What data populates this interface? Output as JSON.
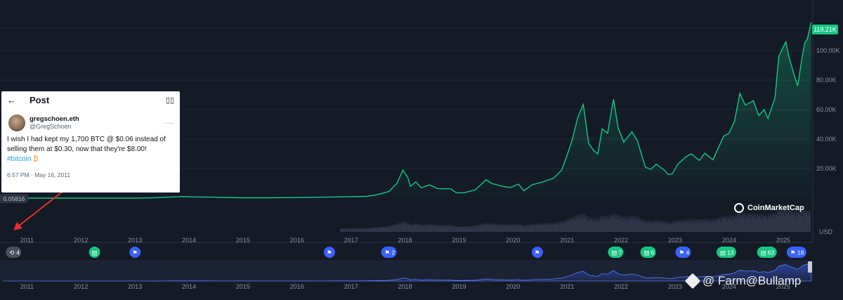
{
  "chart_data": {
    "type": "area",
    "currency_label": "USD",
    "current_price_label": "119.21K",
    "low_marker_label": "0.05816",
    "ylim": [
      0,
      120000
    ],
    "y_ticks": [
      {
        "value": 20000,
        "label": "20.00K"
      },
      {
        "value": 40000,
        "label": "40.00K"
      },
      {
        "value": 60000,
        "label": "60.00K"
      },
      {
        "value": 80000,
        "label": "80.00K"
      },
      {
        "value": 100000,
        "label": "100.00K"
      }
    ],
    "xlim": [
      2010.5,
      2025.55
    ],
    "x_ticks": [
      {
        "value": 2011,
        "label": "2011"
      },
      {
        "value": 2012,
        "label": "2012"
      },
      {
        "value": 2013,
        "label": "2013"
      },
      {
        "value": 2014,
        "label": "2014"
      },
      {
        "value": 2015,
        "label": "2015"
      },
      {
        "value": 2016,
        "label": "2016"
      },
      {
        "value": 2017,
        "label": "2017"
      },
      {
        "value": 2018,
        "label": "2018"
      },
      {
        "value": 2019,
        "label": "2019"
      },
      {
        "value": 2020,
        "label": "2020"
      },
      {
        "value": 2021,
        "label": "2021"
      },
      {
        "value": 2022,
        "label": "2022"
      },
      {
        "value": 2023,
        "label": "2023"
      },
      {
        "value": 2024,
        "label": "2024"
      },
      {
        "value": 2025,
        "label": "2025"
      }
    ],
    "series": [
      {
        "color": "#16c784",
        "points": [
          [
            2010.55,
            0.06
          ],
          [
            2011.0,
            0.3
          ],
          [
            2011.45,
            8
          ],
          [
            2012.0,
            5
          ],
          [
            2012.5,
            7
          ],
          [
            2013.0,
            13
          ],
          [
            2013.3,
            200
          ],
          [
            2013.9,
            1100
          ],
          [
            2014.1,
            800
          ],
          [
            2014.5,
            600
          ],
          [
            2015.0,
            250
          ],
          [
            2015.5,
            240
          ],
          [
            2016.0,
            430
          ],
          [
            2016.5,
            650
          ],
          [
            2017.0,
            1000
          ],
          [
            2017.3,
            1200
          ],
          [
            2017.5,
            2500
          ],
          [
            2017.7,
            4500
          ],
          [
            2017.85,
            10000
          ],
          [
            2017.96,
            19000
          ],
          [
            2018.05,
            14000
          ],
          [
            2018.1,
            8000
          ],
          [
            2018.2,
            11000
          ],
          [
            2018.3,
            7000
          ],
          [
            2018.45,
            9000
          ],
          [
            2018.6,
            6500
          ],
          [
            2018.85,
            6300
          ],
          [
            2018.95,
            3500
          ],
          [
            2019.1,
            3700
          ],
          [
            2019.3,
            5500
          ],
          [
            2019.5,
            12500
          ],
          [
            2019.6,
            10000
          ],
          [
            2019.8,
            8000
          ],
          [
            2019.95,
            7200
          ],
          [
            2020.1,
            9500
          ],
          [
            2020.2,
            5000
          ],
          [
            2020.35,
            9000
          ],
          [
            2020.55,
            11000
          ],
          [
            2020.75,
            13500
          ],
          [
            2020.9,
            19000
          ],
          [
            2021.0,
            29000
          ],
          [
            2021.1,
            40000
          ],
          [
            2021.2,
            55000
          ],
          [
            2021.3,
            63500
          ],
          [
            2021.4,
            37000
          ],
          [
            2021.5,
            32000
          ],
          [
            2021.57,
            30000
          ],
          [
            2021.65,
            47000
          ],
          [
            2021.75,
            44000
          ],
          [
            2021.86,
            67000
          ],
          [
            2021.95,
            47000
          ],
          [
            2022.05,
            38000
          ],
          [
            2022.2,
            45000
          ],
          [
            2022.3,
            39000
          ],
          [
            2022.45,
            21000
          ],
          [
            2022.55,
            19500
          ],
          [
            2022.65,
            23000
          ],
          [
            2022.8,
            19000
          ],
          [
            2022.87,
            16000
          ],
          [
            2022.95,
            16500
          ],
          [
            2023.05,
            23000
          ],
          [
            2023.2,
            28000
          ],
          [
            2023.3,
            30000
          ],
          [
            2023.45,
            25500
          ],
          [
            2023.55,
            30500
          ],
          [
            2023.7,
            26000
          ],
          [
            2023.8,
            34000
          ],
          [
            2023.9,
            42000
          ],
          [
            2024.0,
            44000
          ],
          [
            2024.1,
            52000
          ],
          [
            2024.2,
            71000
          ],
          [
            2024.3,
            63000
          ],
          [
            2024.45,
            66000
          ],
          [
            2024.55,
            56000
          ],
          [
            2024.65,
            60000
          ],
          [
            2024.72,
            54000
          ],
          [
            2024.85,
            68000
          ],
          [
            2024.92,
            96000
          ],
          [
            2024.97,
            100000
          ],
          [
            2025.05,
            106000
          ],
          [
            2025.1,
            97000
          ],
          [
            2025.2,
            84000
          ],
          [
            2025.27,
            76000
          ],
          [
            2025.35,
            95000
          ],
          [
            2025.4,
            105000
          ],
          [
            2025.45,
            108000
          ],
          [
            2025.52,
            119210
          ]
        ]
      }
    ],
    "events": [
      {
        "x": 2010.75,
        "kind": "history",
        "label": "4"
      },
      {
        "x": 2012.25,
        "kind": "doc",
        "label": ""
      },
      {
        "x": 2013.0,
        "kind": "flag",
        "label": ""
      },
      {
        "x": 2016.6,
        "kind": "flag",
        "label": ""
      },
      {
        "x": 2017.7,
        "kind": "flag",
        "label": "2"
      },
      {
        "x": 2020.45,
        "kind": "flag",
        "label": ""
      },
      {
        "x": 2021.9,
        "kind": "doc",
        "label": "7"
      },
      {
        "x": 2022.5,
        "kind": "doc",
        "label": "6"
      },
      {
        "x": 2023.15,
        "kind": "flag",
        "label": "4"
      },
      {
        "x": 2023.95,
        "kind": "doc",
        "label": "13"
      },
      {
        "x": 2024.7,
        "kind": "doc",
        "label": "63"
      },
      {
        "x": 2025.25,
        "kind": "flag",
        "label": "18"
      }
    ]
  },
  "tweet": {
    "title": "Post",
    "back_icon": "arrow-left-icon",
    "reader_icon": "book-icon",
    "display_name": "gregschoen.eth",
    "handle": "@GregSchoen",
    "text": "I wish I had kept my 1,700 BTC @ $0.06 instead of selling them at $0.30, now that they're $8.00!",
    "hashtag": "#bitcoin",
    "time": "6:57 PM · May 16, 2011"
  },
  "brand": "CoinMarketCap",
  "watermark": "@ Farm@Bullamp",
  "colors": {
    "background": "#141a26",
    "line": "#16c784",
    "flag_marker": "#3861fb",
    "doc_marker": "#16c784",
    "annotation_arrow": "#e0332b"
  }
}
